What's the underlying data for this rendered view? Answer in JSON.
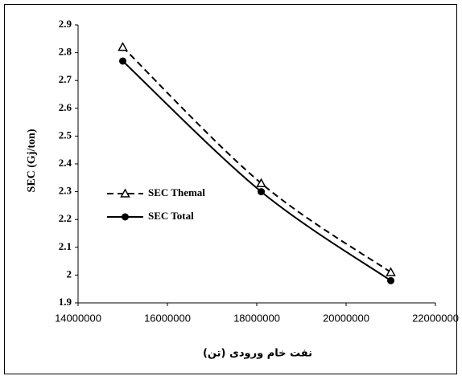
{
  "chart_data": {
    "type": "line",
    "x_label": "نفت خام ورودی (تن)",
    "y_label": "SEC (Gj/ton)",
    "x": [
      15000000,
      18100000,
      21000000
    ],
    "series": [
      {
        "name": "SEC Themal",
        "color": "#000000",
        "marker": "triangle",
        "line_style": "dashed",
        "values": [
          2.82,
          2.33,
          2.01
        ]
      },
      {
        "name": "SEC Total",
        "color": "#000000",
        "marker": "circle",
        "line_style": "solid",
        "values": [
          2.77,
          2.3,
          1.98
        ]
      }
    ],
    "xlim": [
      14000000,
      22000000
    ],
    "xticks": [
      14000000,
      16000000,
      18000000,
      20000000,
      22000000
    ],
    "ylim": [
      1.9,
      2.9
    ],
    "yticks": [
      1.9,
      2,
      2.1,
      2.2,
      2.3,
      2.4,
      2.5,
      2.6,
      2.7,
      2.8,
      2.9
    ],
    "grid": false,
    "smooth": true,
    "legend": "left"
  }
}
